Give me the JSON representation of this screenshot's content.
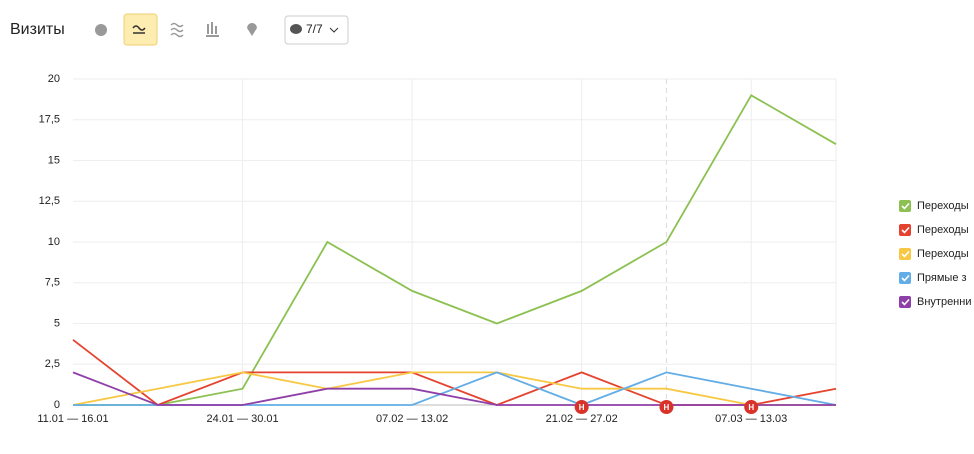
{
  "title": "Визиты",
  "toolbar": {
    "filter_button": "7/7"
  },
  "chart_data": {
    "type": "line",
    "categories": [
      "11.01 — 16.01",
      null,
      "24.01 — 30.01",
      null,
      "07.02 — 13.02",
      null,
      "21.02 — 27.02",
      null,
      "07.03 — 13.03",
      null
    ],
    "series": [
      {
        "name": "Переходы",
        "color": "#8cc152",
        "values": [
          0,
          0,
          1,
          10,
          7,
          5,
          7,
          10,
          19,
          16
        ]
      },
      {
        "name": "Переходы",
        "color": "#e5432f",
        "values": [
          4,
          0,
          2,
          2,
          2,
          0,
          2,
          0,
          0,
          1
        ]
      },
      {
        "name": "Переходы",
        "color": "#f7c843",
        "values": [
          0,
          1,
          2,
          1,
          2,
          2,
          1,
          1,
          0,
          0
        ]
      },
      {
        "name": "Прямые з",
        "color": "#63ade6",
        "values": [
          0,
          0,
          0,
          0,
          0,
          2,
          0,
          2,
          1,
          0
        ]
      },
      {
        "name": "Внутренни",
        "color": "#8f3fa8",
        "values": [
          2,
          0,
          0,
          1,
          1,
          0,
          0,
          0,
          0,
          0
        ]
      }
    ],
    "ylim": [
      0,
      20
    ],
    "yticks": [
      0,
      {
        "value": 2.5,
        "label": "2,5"
      },
      5,
      {
        "value": 7.5,
        "label": "7,5"
      },
      10,
      {
        "value": 12.5,
        "label": "12,5"
      },
      15,
      {
        "value": 17.5,
        "label": "17,5"
      },
      20
    ],
    "grid": true,
    "dashed_line_at": 7,
    "annotations": [
      {
        "x": 6,
        "label": "Н"
      },
      {
        "x": 7,
        "label": "Н"
      },
      {
        "x": 8,
        "label": "Н"
      }
    ],
    "legend": "right"
  }
}
